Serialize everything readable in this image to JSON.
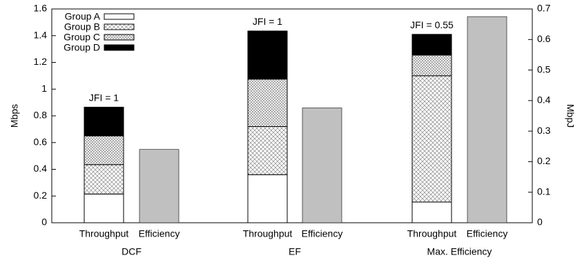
{
  "chart_data": {
    "type": "bar",
    "subtype": "stacked-bar-with-secondary-axis",
    "title": "",
    "ylabel_left": "Mbps",
    "ylabel_right": "MbpJ",
    "ylim_left": [
      0,
      1.6
    ],
    "ylim_right": [
      0,
      0.7
    ],
    "yticks_left": [
      "0",
      "0.2",
      "0.4",
      "0.6",
      "0.8",
      "1",
      "1.2",
      "1.4",
      "1.6"
    ],
    "yticks_right": [
      "0",
      "0.1",
      "0.2",
      "0.3",
      "0.4",
      "0.5",
      "0.6",
      "0.7"
    ],
    "grid": false,
    "legend_position": "top-left",
    "series": [
      {
        "name": "Group A",
        "fill": "white"
      },
      {
        "name": "Group B",
        "fill": "crosshatch-light"
      },
      {
        "name": "Group C",
        "fill": "crosshatch-dense"
      },
      {
        "name": "Group D",
        "fill": "black"
      }
    ],
    "groups": [
      {
        "name": "DCF",
        "throughput_label": "Throughput",
        "efficiency_label": "Efficiency",
        "jfi": "JFI = 1",
        "throughput_stack": [
          0.215,
          0.22,
          0.215,
          0.215
        ],
        "efficiency": 0.24
      },
      {
        "name": "EF",
        "throughput_label": "Throughput",
        "efficiency_label": "Efficiency",
        "jfi": "JFI = 1",
        "throughput_stack": [
          0.36,
          0.36,
          0.355,
          0.36
        ],
        "efficiency": 0.376
      },
      {
        "name": "Max. Efficiency",
        "throughput_label": "Throughput",
        "efficiency_label": "Efficiency",
        "jfi": "JFI = 0.55",
        "throughput_stack": [
          0.155,
          0.945,
          0.155,
          0.155
        ],
        "efficiency": 0.675
      }
    ],
    "colors": {
      "efficiency_bar": "#c0c0c0",
      "group_d": "#000000",
      "group_a": "#ffffff"
    }
  }
}
